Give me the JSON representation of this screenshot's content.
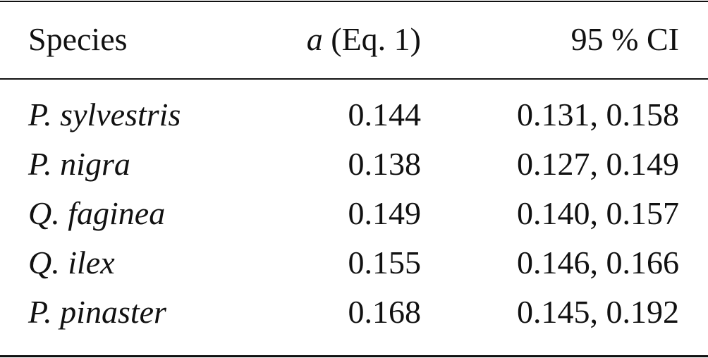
{
  "table": {
    "header": {
      "species": "Species",
      "a_symbol": "a",
      "a_label": "(Eq. 1)",
      "ci": "95 % CI"
    },
    "rows": [
      [
        "P. sylvestris",
        "0.144",
        "0.131, 0.158"
      ],
      [
        "P. nigra",
        "0.138",
        "0.127, 0.149"
      ],
      [
        "Q. faginea",
        "0.149",
        "0.140, 0.157"
      ],
      [
        "Q. ilex",
        "0.155",
        "0.146, 0.166"
      ],
      [
        "P. pinaster",
        "0.168",
        "0.145, 0.192"
      ]
    ]
  }
}
